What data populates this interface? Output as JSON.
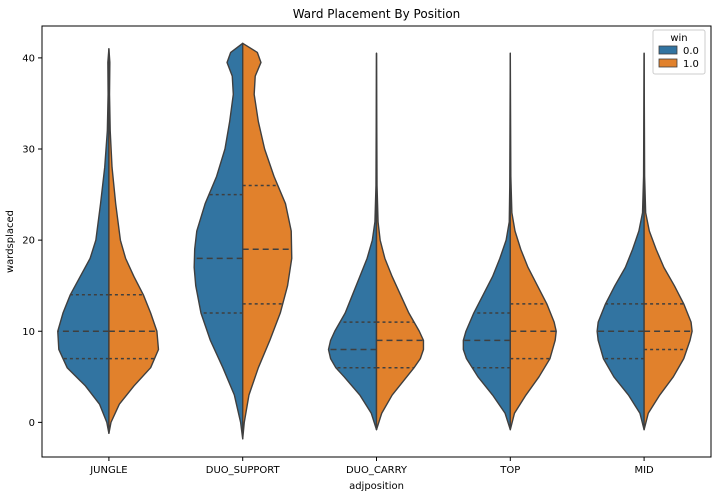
{
  "chart_data": {
    "type": "violin",
    "title": "Ward Placement By Position",
    "xlabel": "adjposition",
    "ylabel": "wardsplaced",
    "categories": [
      "JUNGLE",
      "DUO_SUPPORT",
      "DUO_CARRY",
      "TOP",
      "MID"
    ],
    "ylim": [
      -3.8,
      43.5
    ],
    "yticks": [
      0,
      10,
      20,
      30,
      40
    ],
    "legend": {
      "title": "win",
      "position": "top-right",
      "entries": [
        {
          "label": "0.0",
          "color": "#3274a1"
        },
        {
          "label": "1.0",
          "color": "#e1812c"
        }
      ]
    },
    "series": [
      {
        "name": "0.0",
        "color": "#3274a1",
        "violins": [
          {
            "category": "JUNGLE",
            "quartiles": [
              7,
              10,
              14
            ],
            "density": [
              [
                -1.2,
                0.0
              ],
              [
                0,
                0.04
              ],
              [
                2,
                0.18
              ],
              [
                4,
                0.45
              ],
              [
                6,
                0.8
              ],
              [
                8,
                0.96
              ],
              [
                10,
                0.98
              ],
              [
                12,
                0.88
              ],
              [
                14,
                0.74
              ],
              [
                16,
                0.55
              ],
              [
                18,
                0.36
              ],
              [
                20,
                0.25
              ],
              [
                24,
                0.16
              ],
              [
                28,
                0.08
              ],
              [
                32,
                0.03
              ],
              [
                36,
                0.015
              ],
              [
                39.5,
                0.02
              ],
              [
                41,
                0.0
              ]
            ]
          },
          {
            "category": "DUO_SUPPORT",
            "quartiles": [
              12,
              18,
              25
            ],
            "density": [
              [
                -1.8,
                0.0
              ],
              [
                0,
                0.04
              ],
              [
                3,
                0.16
              ],
              [
                6,
                0.38
              ],
              [
                9,
                0.62
              ],
              [
                12,
                0.8
              ],
              [
                15,
                0.9
              ],
              [
                17,
                0.93
              ],
              [
                19,
                0.92
              ],
              [
                21,
                0.88
              ],
              [
                24,
                0.72
              ],
              [
                27,
                0.5
              ],
              [
                30,
                0.34
              ],
              [
                33,
                0.25
              ],
              [
                36,
                0.18
              ],
              [
                38,
                0.2
              ],
              [
                39.5,
                0.3
              ],
              [
                40.6,
                0.23
              ],
              [
                41.6,
                0.0
              ]
            ]
          },
          {
            "category": "DUO_CARRY",
            "quartiles": [
              6,
              8,
              11
            ],
            "density": [
              [
                -0.8,
                0.0
              ],
              [
                1,
                0.1
              ],
              [
                3,
                0.32
              ],
              [
                5,
                0.62
              ],
              [
                6,
                0.78
              ],
              [
                7,
                0.88
              ],
              [
                8,
                0.92
              ],
              [
                9,
                0.88
              ],
              [
                10,
                0.8
              ],
              [
                11,
                0.7
              ],
              [
                12,
                0.6
              ],
              [
                14,
                0.46
              ],
              [
                16,
                0.32
              ],
              [
                18,
                0.18
              ],
              [
                20,
                0.08
              ],
              [
                22,
                0.03
              ],
              [
                26,
                0.01
              ],
              [
                40.5,
                0.0
              ]
            ]
          },
          {
            "category": "TOP",
            "quartiles": [
              6,
              9,
              12
            ],
            "density": [
              [
                -0.8,
                0.0
              ],
              [
                1,
                0.1
              ],
              [
                3,
                0.34
              ],
              [
                5,
                0.62
              ],
              [
                7,
                0.84
              ],
              [
                8,
                0.9
              ],
              [
                9,
                0.9
              ],
              [
                10,
                0.85
              ],
              [
                12,
                0.7
              ],
              [
                14,
                0.52
              ],
              [
                16,
                0.34
              ],
              [
                18,
                0.2
              ],
              [
                20,
                0.08
              ],
              [
                22,
                0.02
              ],
              [
                26,
                0.01
              ],
              [
                40.5,
                0.0
              ]
            ]
          },
          {
            "category": "MID",
            "quartiles": [
              7,
              10,
              13
            ],
            "density": [
              [
                -0.8,
                0.0
              ],
              [
                1,
                0.08
              ],
              [
                3,
                0.3
              ],
              [
                5,
                0.58
              ],
              [
                7,
                0.78
              ],
              [
                9,
                0.88
              ],
              [
                10,
                0.9
              ],
              [
                11,
                0.88
              ],
              [
                13,
                0.74
              ],
              [
                15,
                0.56
              ],
              [
                17,
                0.36
              ],
              [
                19,
                0.22
              ],
              [
                21,
                0.1
              ],
              [
                23,
                0.03
              ],
              [
                27,
                0.01
              ],
              [
                40.5,
                0.0
              ]
            ]
          }
        ]
      },
      {
        "name": "1.0",
        "color": "#e1812c",
        "violins": [
          {
            "category": "JUNGLE",
            "quartiles": [
              7,
              10,
              14
            ],
            "density": [
              [
                -1.2,
                0.0
              ],
              [
                0,
                0.04
              ],
              [
                2,
                0.2
              ],
              [
                4,
                0.48
              ],
              [
                6,
                0.8
              ],
              [
                8,
                0.95
              ],
              [
                10,
                0.92
              ],
              [
                12,
                0.8
              ],
              [
                14,
                0.66
              ],
              [
                16,
                0.48
              ],
              [
                18,
                0.32
              ],
              [
                20,
                0.22
              ],
              [
                24,
                0.13
              ],
              [
                28,
                0.06
              ],
              [
                32,
                0.025
              ],
              [
                36,
                0.012
              ],
              [
                39.5,
                0.018
              ],
              [
                41,
                0.0
              ]
            ]
          },
          {
            "category": "DUO_SUPPORT",
            "quartiles": [
              13,
              19,
              26
            ],
            "density": [
              [
                -1.8,
                0.0
              ],
              [
                0,
                0.03
              ],
              [
                3,
                0.12
              ],
              [
                6,
                0.3
              ],
              [
                9,
                0.52
              ],
              [
                12,
                0.72
              ],
              [
                15,
                0.86
              ],
              [
                18,
                0.94
              ],
              [
                21,
                0.93
              ],
              [
                24,
                0.82
              ],
              [
                27,
                0.6
              ],
              [
                30,
                0.42
              ],
              [
                33,
                0.3
              ],
              [
                36,
                0.22
              ],
              [
                38,
                0.24
              ],
              [
                39.5,
                0.35
              ],
              [
                40.6,
                0.28
              ],
              [
                41.6,
                0.0
              ]
            ]
          },
          {
            "category": "DUO_CARRY",
            "quartiles": [
              6,
              9,
              11
            ],
            "density": [
              [
                -0.8,
                0.0
              ],
              [
                1,
                0.1
              ],
              [
                3,
                0.3
              ],
              [
                5,
                0.58
              ],
              [
                6,
                0.72
              ],
              [
                7,
                0.84
              ],
              [
                8,
                0.9
              ],
              [
                9,
                0.9
              ],
              [
                10,
                0.82
              ],
              [
                11,
                0.72
              ],
              [
                12,
                0.62
              ],
              [
                14,
                0.46
              ],
              [
                16,
                0.3
              ],
              [
                18,
                0.16
              ],
              [
                20,
                0.07
              ],
              [
                22,
                0.03
              ],
              [
                26,
                0.01
              ],
              [
                40.5,
                0.0
              ]
            ]
          },
          {
            "category": "TOP",
            "quartiles": [
              7,
              10,
              13
            ],
            "density": [
              [
                -0.8,
                0.0
              ],
              [
                1,
                0.08
              ],
              [
                3,
                0.3
              ],
              [
                5,
                0.55
              ],
              [
                7,
                0.76
              ],
              [
                9,
                0.86
              ],
              [
                10,
                0.88
              ],
              [
                11,
                0.84
              ],
              [
                13,
                0.7
              ],
              [
                15,
                0.52
              ],
              [
                17,
                0.34
              ],
              [
                19,
                0.2
              ],
              [
                21,
                0.09
              ],
              [
                23,
                0.03
              ],
              [
                27,
                0.01
              ],
              [
                40.5,
                0.0
              ]
            ]
          },
          {
            "category": "MID",
            "quartiles": [
              8,
              10,
              13
            ],
            "density": [
              [
                -0.8,
                0.0
              ],
              [
                1,
                0.08
              ],
              [
                3,
                0.3
              ],
              [
                5,
                0.56
              ],
              [
                7,
                0.76
              ],
              [
                9,
                0.88
              ],
              [
                10,
                0.92
              ],
              [
                11,
                0.9
              ],
              [
                13,
                0.76
              ],
              [
                15,
                0.58
              ],
              [
                17,
                0.38
              ],
              [
                19,
                0.23
              ],
              [
                21,
                0.1
              ],
              [
                23,
                0.03
              ],
              [
                27,
                0.01
              ],
              [
                40.5,
                0.0
              ]
            ]
          }
        ]
      }
    ]
  }
}
